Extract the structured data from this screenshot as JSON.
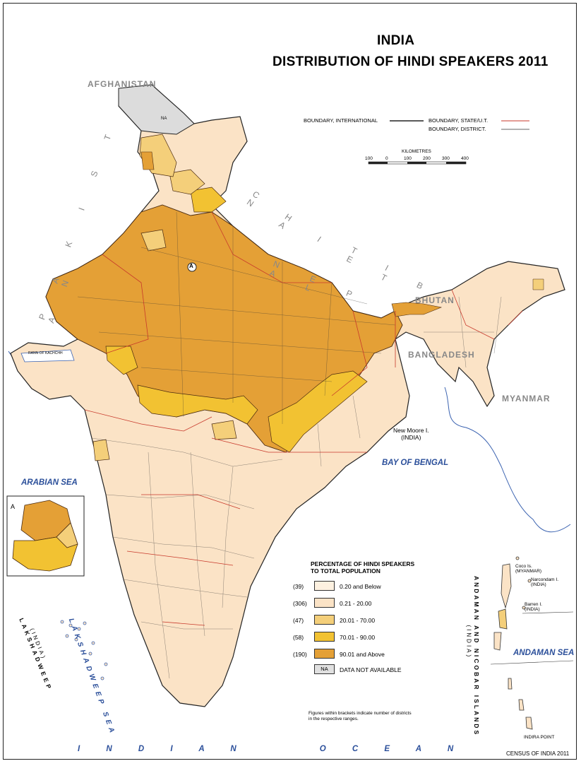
{
  "title": {
    "line1": "INDIA",
    "line2": "DISTRIBUTION OF HINDI SPEAKERS 2011"
  },
  "neighbors": {
    "afghanistan": "AFGHANISTAN",
    "pakistan": "P A K I S T A N",
    "china": "C H I N A",
    "tibet": "T I B E T",
    "nepal": "N E P A L",
    "bhutan": "BHUTAN",
    "bangladesh": "BANGLADESH",
    "myanmar": "MYANMAR"
  },
  "seas": {
    "arabian": "ARABIAN SEA",
    "bengal": "BAY OF BENGAL",
    "andaman": "ANDAMAN SEA",
    "lakshadweep_sea": "LAKSHADWEEP SEA",
    "indian_ocean": "I N D I A N     O C E A N"
  },
  "places": {
    "rann": "RANN OF KACHCHH",
    "new_moore": "New Moore I.",
    "new_moore_sub": "(INDIA)",
    "coco": "Coco Is.",
    "coco_sub": "(MYANMAR)",
    "narcondam": "Narcondam I.",
    "narcondam_sub": "(INDIA)",
    "barren": "Barren I.",
    "barren_sub": "(INDIA)",
    "indira_point": "INDIRA POINT",
    "lakshadweep": "LAKSHADWEEP",
    "lakshadweep_sub": "(INDIA)",
    "andaman_nicobar": "ANDAMAN AND NICOBAR ISLANDS",
    "andaman_nicobar_sub": "(INDIA)",
    "na_tag": "NA",
    "inset_marker": "A",
    "inset_letter": "A"
  },
  "boundary_legend": {
    "international": "BOUNDARY, INTERNATIONAL",
    "state": "BOUNDARY, STATE/U.T.",
    "district": "BOUNDARY, DISTRICT."
  },
  "scale": {
    "label": "KILOMETRES",
    "ticks": [
      "100",
      "0",
      "100",
      "200",
      "300",
      "400"
    ]
  },
  "legend": {
    "heading_line1": "PERCENTAGE OF HINDI SPEAKERS",
    "heading_line2": "TO TOTAL POPULATION",
    "classes": [
      {
        "count": "(39)",
        "label": "0.20 and Below",
        "color": "#fdf1e0"
      },
      {
        "count": "(306)",
        "label": "0.21 - 20.00",
        "color": "#fbe3c6"
      },
      {
        "count": "(47)",
        "label": "20.01 - 70.00",
        "color": "#f4cf7a"
      },
      {
        "count": "(58)",
        "label": "70.01 - 90.00",
        "color": "#f2c232"
      },
      {
        "count": "(190)",
        "label": "90.01 and Above",
        "color": "#e4a036"
      }
    ],
    "na": {
      "swatch": "NA",
      "label": "DATA NOT AVAILABLE",
      "color": "#e0e0e0"
    }
  },
  "footnote": {
    "line1": "Figures within brackets indicate number of districts",
    "line2": "in the respective ranges."
  },
  "credit": "CENSUS OF INDIA 2011",
  "colors": {
    "international_boundary": "#222222",
    "state_boundary": "#c8392b",
    "district_boundary": "#333333",
    "sea_label": "#2b4f9a",
    "coastline": "#3a62b0"
  }
}
